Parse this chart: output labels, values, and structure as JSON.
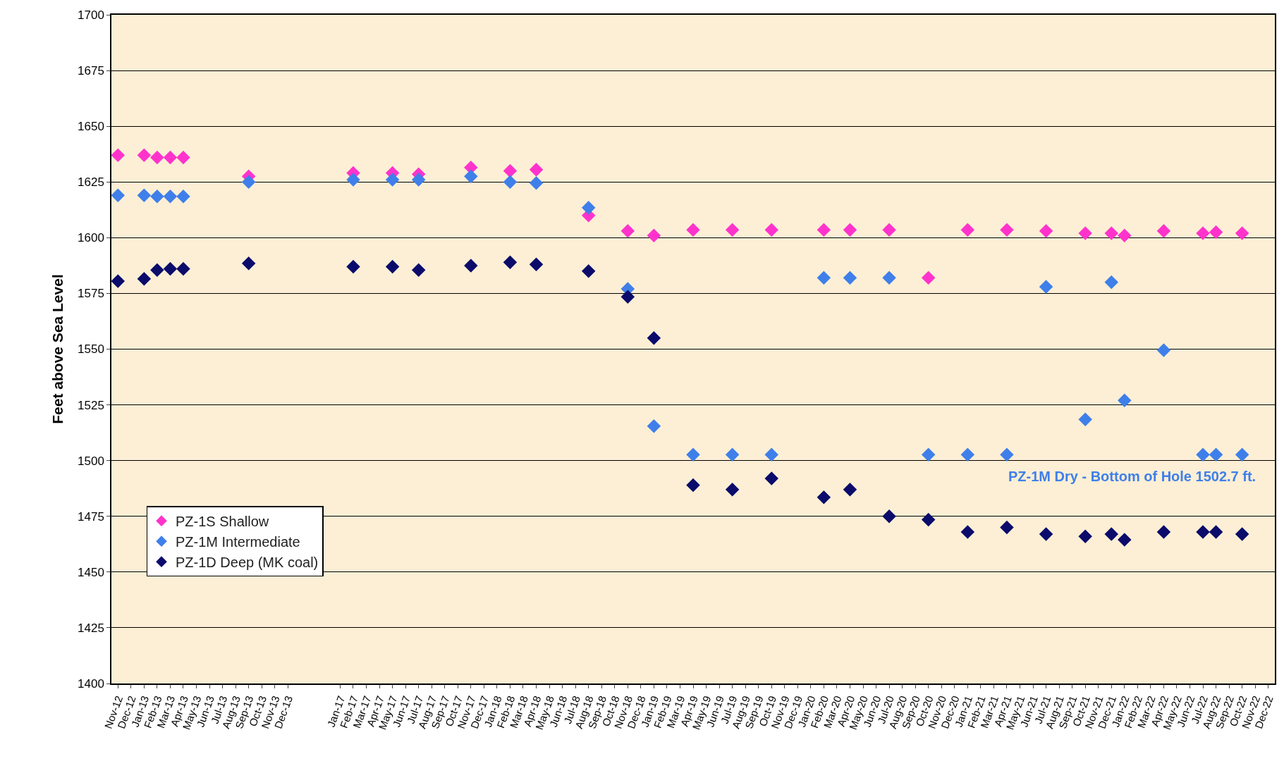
{
  "chart_data": {
    "type": "scatter",
    "ylabel": "Feet above Sea Level",
    "categories": [
      "Nov-12",
      "Dec-12",
      "Jan-13",
      "Feb-13",
      "Mar-13",
      "Apr-13",
      "May-13",
      "Jun-13",
      "Jul-13",
      "Aug-13",
      "Sep-13",
      "Oct-13",
      "Nov-13",
      "Dec-13",
      null,
      null,
      null,
      "Jan-17",
      "Feb-17",
      "Mar-17",
      "Apr-17",
      "May-17",
      "Jun-17",
      "Jul-17",
      "Aug-17",
      "Sep-17",
      "Oct-17",
      "Nov-17",
      "Dec-17",
      "Jan-18",
      "Feb-18",
      "Mar-18",
      "Apr-18",
      "May-18",
      "Jun-18",
      "Jul-18",
      "Aug-18",
      "Sep-18",
      "Oct-18",
      "Nov-18",
      "Dec-18",
      "Jan-19",
      "Feb-19",
      "Mar-19",
      "Apr-19",
      "May-19",
      "Jun-19",
      "Jul-19",
      "Aug-19",
      "Sep-19",
      "Oct-19",
      "Nov-19",
      "Dec-19",
      "Jan-20",
      "Feb-20",
      "Mar-20",
      "Apr-20",
      "May-20",
      "Jun-20",
      "Jul-20",
      "Aug-20",
      "Sep-20",
      "Oct-20",
      "Nov-20",
      "Dec-20",
      "Jan-21",
      "Feb-21",
      "Mar-21",
      "Apr-21",
      "May-21",
      "Jun-21",
      "Jul-21",
      "Aug-21",
      "Sep-21",
      "Oct-21",
      "Nov-21",
      "Dec-21",
      "Jan-22",
      "Feb-22",
      "Mar-22",
      "Apr-22",
      "May-22",
      "Jun-22",
      "Jul-22",
      "Aug-22",
      "Sep-22",
      "Oct-22",
      "Nov-22",
      "Dec-22"
    ],
    "series": [
      {
        "name": "PZ-1S Shallow",
        "color": "#ff33cc",
        "values": [
          1637,
          null,
          1637,
          1636,
          1636,
          1636,
          null,
          null,
          null,
          null,
          1627.5,
          null,
          null,
          null,
          null,
          null,
          null,
          null,
          1629,
          null,
          null,
          1629,
          null,
          1628.5,
          null,
          null,
          null,
          1631.5,
          null,
          null,
          1630,
          null,
          1630.5,
          null,
          null,
          null,
          1610,
          null,
          null,
          1603,
          null,
          1601,
          null,
          null,
          1603.5,
          null,
          null,
          1603.5,
          null,
          null,
          1603.5,
          null,
          null,
          null,
          1603.5,
          null,
          1603.5,
          null,
          null,
          1603.5,
          null,
          null,
          1582,
          null,
          null,
          1603.5,
          null,
          null,
          1603.5,
          null,
          null,
          1603,
          null,
          null,
          1602,
          null,
          1602,
          1601,
          null,
          null,
          1603,
          null,
          null,
          1602,
          1602.5,
          null,
          1602,
          null,
          null
        ]
      },
      {
        "name": "PZ-1M Intermediate",
        "color": "#3f7fea",
        "values": [
          1619,
          null,
          1619,
          1618.5,
          1618.5,
          1618.5,
          null,
          null,
          null,
          null,
          1625,
          null,
          null,
          null,
          null,
          null,
          null,
          null,
          1626,
          null,
          null,
          1626,
          null,
          1626,
          null,
          null,
          null,
          1627.5,
          null,
          null,
          1625,
          null,
          1624.5,
          null,
          null,
          null,
          1613.5,
          null,
          null,
          1577,
          null,
          1515.5,
          null,
          null,
          1502.7,
          null,
          null,
          1502.7,
          null,
          null,
          1502.7,
          null,
          null,
          null,
          1582,
          null,
          1582,
          null,
          null,
          1582,
          null,
          null,
          1502.7,
          null,
          null,
          1502.7,
          null,
          null,
          1502.7,
          null,
          null,
          1578,
          null,
          null,
          1518.5,
          null,
          1580,
          1527,
          null,
          null,
          1549.5,
          null,
          null,
          1502.7,
          1502.7,
          null,
          1502.7,
          null,
          null
        ]
      },
      {
        "name": "PZ-1D Deep (MK coal)",
        "color": "#0b0b6b",
        "values": [
          1580.5,
          null,
          1581.5,
          1585.5,
          1586,
          1586,
          null,
          null,
          null,
          null,
          1588.5,
          null,
          null,
          null,
          null,
          null,
          null,
          null,
          1587,
          null,
          null,
          1587,
          null,
          1585.5,
          null,
          null,
          null,
          1587.5,
          null,
          null,
          1589,
          null,
          1588,
          null,
          null,
          null,
          1585,
          null,
          null,
          1573.5,
          null,
          1555,
          null,
          null,
          1489,
          null,
          null,
          1487,
          null,
          null,
          1492,
          null,
          null,
          null,
          1483.5,
          null,
          1487,
          null,
          null,
          1475,
          null,
          null,
          1473.5,
          null,
          null,
          1468,
          null,
          null,
          1470,
          null,
          null,
          1467,
          null,
          null,
          1466,
          null,
          1467,
          1464.5,
          null,
          null,
          1468,
          null,
          null,
          1468,
          1468,
          null,
          1467,
          null,
          null
        ]
      }
    ],
    "ylim": [
      1400,
      1700
    ],
    "yticks": [
      1400,
      1425,
      1450,
      1475,
      1500,
      1525,
      1550,
      1575,
      1600,
      1625,
      1650,
      1675,
      1700
    ],
    "grid": "y",
    "legend": "bottom left",
    "marker": "diamond",
    "annotations": [
      "PZ-1M Dry - Bottom of Hole 1502.7 ft."
    ]
  }
}
